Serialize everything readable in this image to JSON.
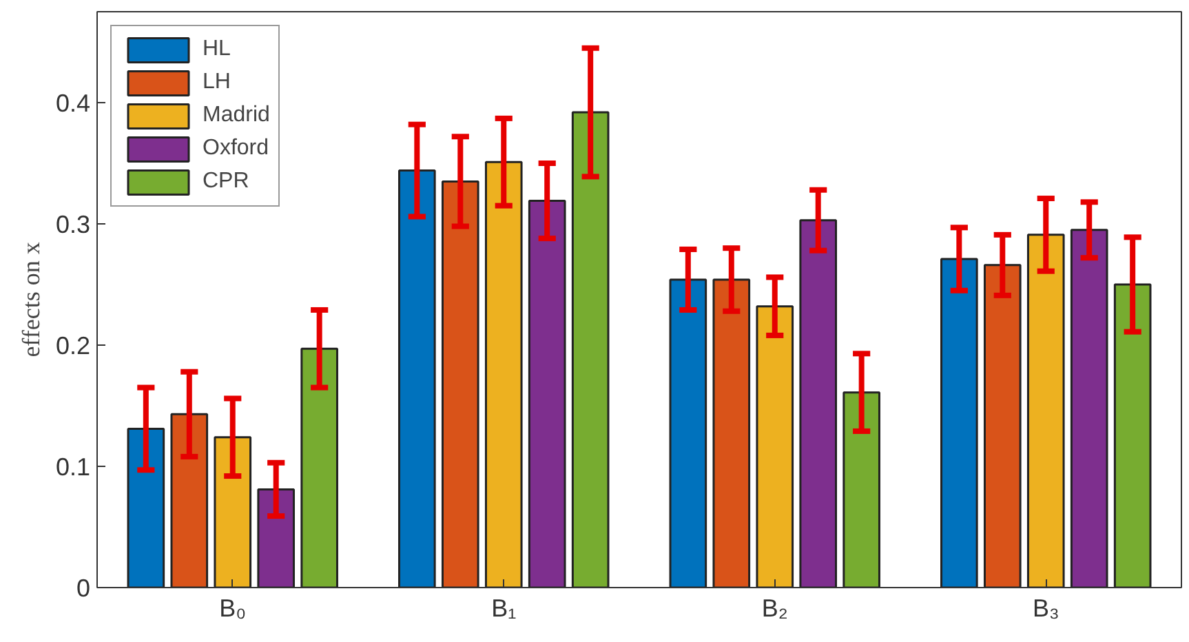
{
  "chart_data": {
    "type": "bar",
    "ylabel": "effects on x",
    "categories": [
      "B₀",
      "B₁",
      "B₂",
      "B₃"
    ],
    "series": [
      {
        "name": "HL",
        "color": "#0072bd",
        "values": [
          0.131,
          0.344,
          0.254,
          0.271
        ],
        "errors": [
          0.034,
          0.038,
          0.025,
          0.026
        ]
      },
      {
        "name": "LH",
        "color": "#d95319",
        "values": [
          0.143,
          0.335,
          0.254,
          0.266
        ],
        "errors": [
          0.035,
          0.037,
          0.026,
          0.025
        ]
      },
      {
        "name": "Madrid",
        "color": "#edb120",
        "values": [
          0.124,
          0.351,
          0.232,
          0.291
        ],
        "errors": [
          0.032,
          0.036,
          0.024,
          0.03
        ]
      },
      {
        "name": "Oxford",
        "color": "#7e2f8e",
        "values": [
          0.081,
          0.319,
          0.303,
          0.295
        ],
        "errors": [
          0.022,
          0.031,
          0.025,
          0.023
        ]
      },
      {
        "name": "CPR",
        "color": "#77ac30",
        "values": [
          0.197,
          0.392,
          0.161,
          0.25
        ],
        "errors": [
          0.032,
          0.053,
          0.032,
          0.039
        ]
      }
    ],
    "ylim": [
      0,
      0.475
    ],
    "yticks": [
      0,
      0.1,
      0.2,
      0.3,
      0.4
    ],
    "grid": false,
    "legend": "top left"
  }
}
